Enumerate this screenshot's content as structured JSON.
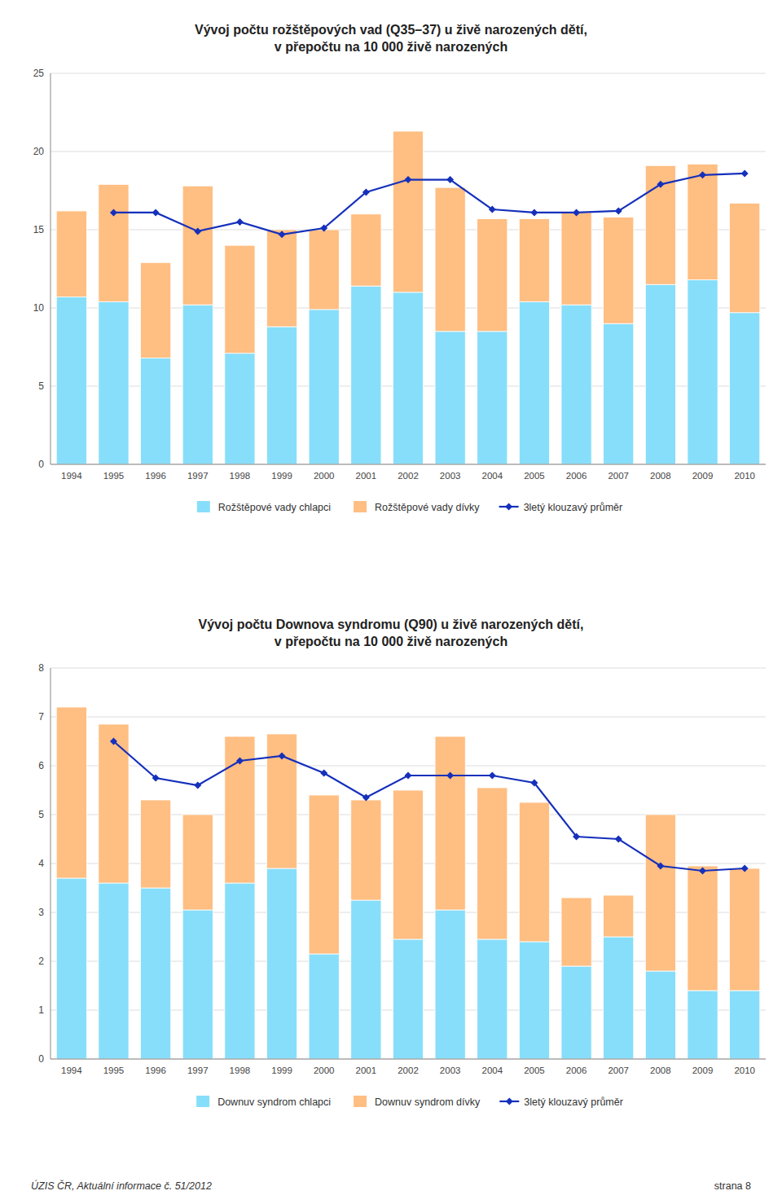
{
  "chart_data": [
    {
      "type": "bar",
      "title": "Vývoj počtu rožštěpových vad (Q35–37) u živě narozených dětí,",
      "subtitle": "v přepočtu na 10 000 živě narozených",
      "categories": [
        "1994",
        "1995",
        "1996",
        "1997",
        "1998",
        "1999",
        "2000",
        "2001",
        "2002",
        "2003",
        "2004",
        "2005",
        "2006",
        "2007",
        "2008",
        "2009",
        "2010"
      ],
      "series": [
        {
          "name": "Rožštěpové vady chlapci",
          "type": "bar",
          "color": "#87DEFA",
          "values": [
            10.7,
            10.4,
            6.8,
            10.2,
            7.1,
            8.8,
            9.9,
            11.4,
            11.0,
            8.5,
            8.5,
            10.4,
            10.2,
            9.0,
            11.5,
            11.8,
            9.7
          ]
        },
        {
          "name": "Rožštěpové vady dívky",
          "type": "bar",
          "color": "#FFBE82",
          "values": [
            5.5,
            7.5,
            6.1,
            7.6,
            6.9,
            6.2,
            5.1,
            4.6,
            10.3,
            9.2,
            7.2,
            5.3,
            5.9,
            6.8,
            7.6,
            7.4,
            7.0
          ]
        },
        {
          "name": "3letý klouzavý průměr",
          "type": "line",
          "color": "#1530BB",
          "marker": "diamond",
          "values": [
            null,
            16.1,
            16.1,
            14.9,
            15.5,
            14.7,
            15.1,
            17.4,
            18.2,
            18.2,
            16.3,
            16.1,
            16.1,
            16.2,
            17.9,
            18.5,
            18.6
          ]
        }
      ],
      "stacked": true,
      "ylim": [
        0,
        25
      ],
      "yticks": [
        0,
        5,
        10,
        15,
        20,
        25
      ],
      "grid": true,
      "legend": "bottom"
    },
    {
      "type": "bar",
      "title": "Vývoj počtu Downova syndromu (Q90) u živě narozených dětí,",
      "subtitle": "v přepočtu na 10 000 živě narozených",
      "categories": [
        "1994",
        "1995",
        "1996",
        "1997",
        "1998",
        "1999",
        "2000",
        "2001",
        "2002",
        "2003",
        "2004",
        "2005",
        "2006",
        "2007",
        "2008",
        "2009",
        "2010"
      ],
      "series": [
        {
          "name": "Downuv syndrom chlapci",
          "type": "bar",
          "color": "#87DEFA",
          "values": [
            3.7,
            3.6,
            3.5,
            3.05,
            3.6,
            3.9,
            2.15,
            3.25,
            2.45,
            3.05,
            2.45,
            2.4,
            1.9,
            2.5,
            1.8,
            1.4,
            1.4
          ]
        },
        {
          "name": "Downuv syndrom dívky",
          "type": "bar",
          "color": "#FFBE82",
          "values": [
            3.5,
            3.25,
            1.8,
            1.95,
            3.0,
            2.75,
            3.25,
            2.05,
            3.05,
            3.55,
            3.1,
            2.85,
            1.4,
            0.85,
            3.2,
            2.55,
            2.5
          ]
        },
        {
          "name": "3letý klouzavý průměr",
          "type": "line",
          "color": "#1530BB",
          "marker": "diamond",
          "values": [
            null,
            6.5,
            5.75,
            5.6,
            6.1,
            6.2,
            5.85,
            5.35,
            5.8,
            5.8,
            5.8,
            5.65,
            4.55,
            4.5,
            3.95,
            3.85,
            3.9
          ]
        }
      ],
      "stacked": true,
      "ylim": [
        0,
        8
      ],
      "yticks": [
        0,
        1,
        2,
        3,
        4,
        5,
        6,
        7,
        8
      ],
      "grid": true,
      "legend": "bottom",
      "annotations": [
        "ÚZIS ČR, Aktuální informace č. 51/2012",
        "strana 8"
      ]
    }
  ]
}
